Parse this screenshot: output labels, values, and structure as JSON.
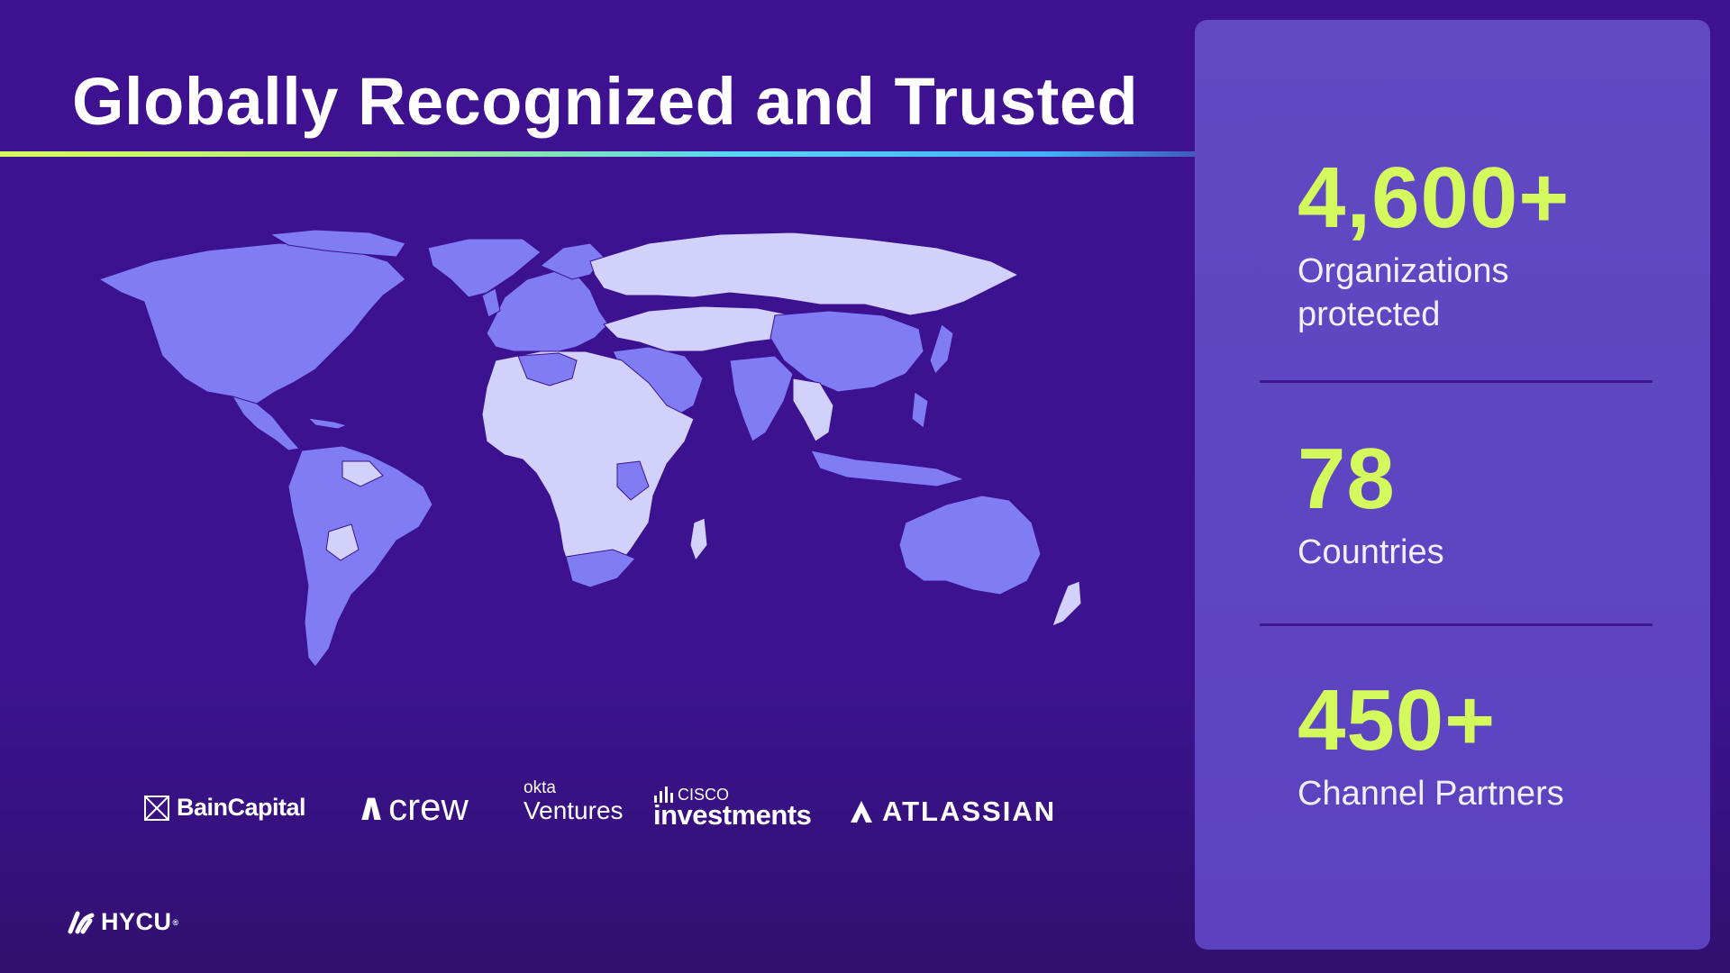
{
  "title": "Globally Recognized and Trusted",
  "stats": [
    {
      "value": "4,600+",
      "label": "Organizations protected"
    },
    {
      "value": "78",
      "label": "Countries"
    },
    {
      "value": "450+",
      "label": "Channel Partners"
    }
  ],
  "investors": {
    "bain": "BainCapital",
    "acrew": "crew",
    "okta_small": "okta",
    "okta_big": "Ventures",
    "cisco_small": "CISCO",
    "cisco_big": "investments",
    "atlassian": "ATLASSIAN"
  },
  "brand": {
    "name": "HYCU"
  },
  "colors": {
    "background": "#3d1190",
    "panel": "#6149c4",
    "accent": "#d4f95c",
    "map_highlight": "#7f7cf4",
    "map_base": "#d1d1fb"
  },
  "icons": [
    "world-map",
    "bain-capital-logo",
    "acrew-logo",
    "okta-ventures-logo",
    "cisco-investments-logo",
    "atlassian-logo",
    "hycu-logo"
  ]
}
